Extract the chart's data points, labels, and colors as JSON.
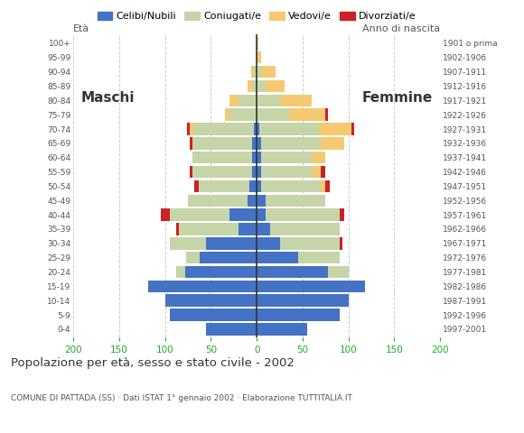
{
  "age_groups": [
    "0-4",
    "5-9",
    "10-14",
    "15-19",
    "20-24",
    "25-29",
    "30-34",
    "35-39",
    "40-44",
    "45-49",
    "50-54",
    "55-59",
    "60-64",
    "65-69",
    "70-74",
    "75-79",
    "80-84",
    "85-89",
    "90-94",
    "95-99",
    "100+"
  ],
  "birth_years": [
    "1997-2001",
    "1992-1996",
    "1987-1991",
    "1982-1986",
    "1977-1981",
    "1972-1976",
    "1967-1971",
    "1962-1966",
    "1957-1961",
    "1952-1956",
    "1947-1951",
    "1942-1946",
    "1937-1941",
    "1932-1936",
    "1927-1931",
    "1922-1926",
    "1917-1921",
    "1912-1916",
    "1907-1911",
    "1902-1906",
    "1901 o prima"
  ],
  "males": {
    "celibe": [
      55,
      95,
      100,
      118,
      78,
      62,
      55,
      20,
      30,
      10,
      8,
      5,
      5,
      5,
      3,
      0,
      0,
      0,
      0,
      0,
      0
    ],
    "coniugato": [
      0,
      0,
      0,
      0,
      10,
      15,
      40,
      65,
      65,
      65,
      55,
      65,
      65,
      65,
      65,
      30,
      20,
      5,
      3,
      0,
      0
    ],
    "vedovo": [
      0,
      0,
      0,
      0,
      0,
      0,
      0,
      0,
      0,
      0,
      0,
      0,
      0,
      0,
      5,
      5,
      10,
      5,
      3,
      0,
      0
    ],
    "divorziato": [
      0,
      0,
      0,
      0,
      0,
      0,
      0,
      3,
      10,
      0,
      5,
      3,
      0,
      3,
      3,
      0,
      0,
      0,
      0,
      0,
      0
    ]
  },
  "females": {
    "nubile": [
      55,
      90,
      100,
      118,
      78,
      45,
      25,
      15,
      10,
      10,
      5,
      5,
      5,
      5,
      3,
      0,
      0,
      0,
      0,
      0,
      0
    ],
    "coniugata": [
      0,
      0,
      0,
      0,
      22,
      45,
      65,
      75,
      80,
      65,
      65,
      55,
      55,
      65,
      65,
      35,
      25,
      10,
      5,
      0,
      0
    ],
    "vedova": [
      0,
      0,
      0,
      0,
      0,
      0,
      0,
      0,
      0,
      0,
      5,
      10,
      15,
      25,
      35,
      40,
      35,
      20,
      15,
      5,
      2
    ],
    "divorziata": [
      0,
      0,
      0,
      0,
      0,
      0,
      3,
      0,
      5,
      0,
      5,
      5,
      0,
      0,
      3,
      3,
      0,
      0,
      0,
      0,
      0
    ]
  },
  "colors": {
    "celibe": "#4472C4",
    "coniugato": "#C5D5A8",
    "vedovo": "#F5C872",
    "divorziato": "#CC2222"
  },
  "title": "Popolazione per età, sesso e stato civile - 2002",
  "subtitle": "COMUNE DI PATTADA (SS) · Dati ISTAT 1° gennaio 2002 · Elaborazione TUTTITALIA.IT",
  "xlabel_left": "Maschi",
  "xlabel_right": "Femmine",
  "ylabel_left": "Età",
  "ylabel_right": "Anno di nascita",
  "xlim": 200,
  "background_color": "#ffffff",
  "grid_color": "#bbbbbb",
  "legend_labels": [
    "Celibi/Nubili",
    "Coniugati/e",
    "Vedovi/e",
    "Divorziati/e"
  ]
}
